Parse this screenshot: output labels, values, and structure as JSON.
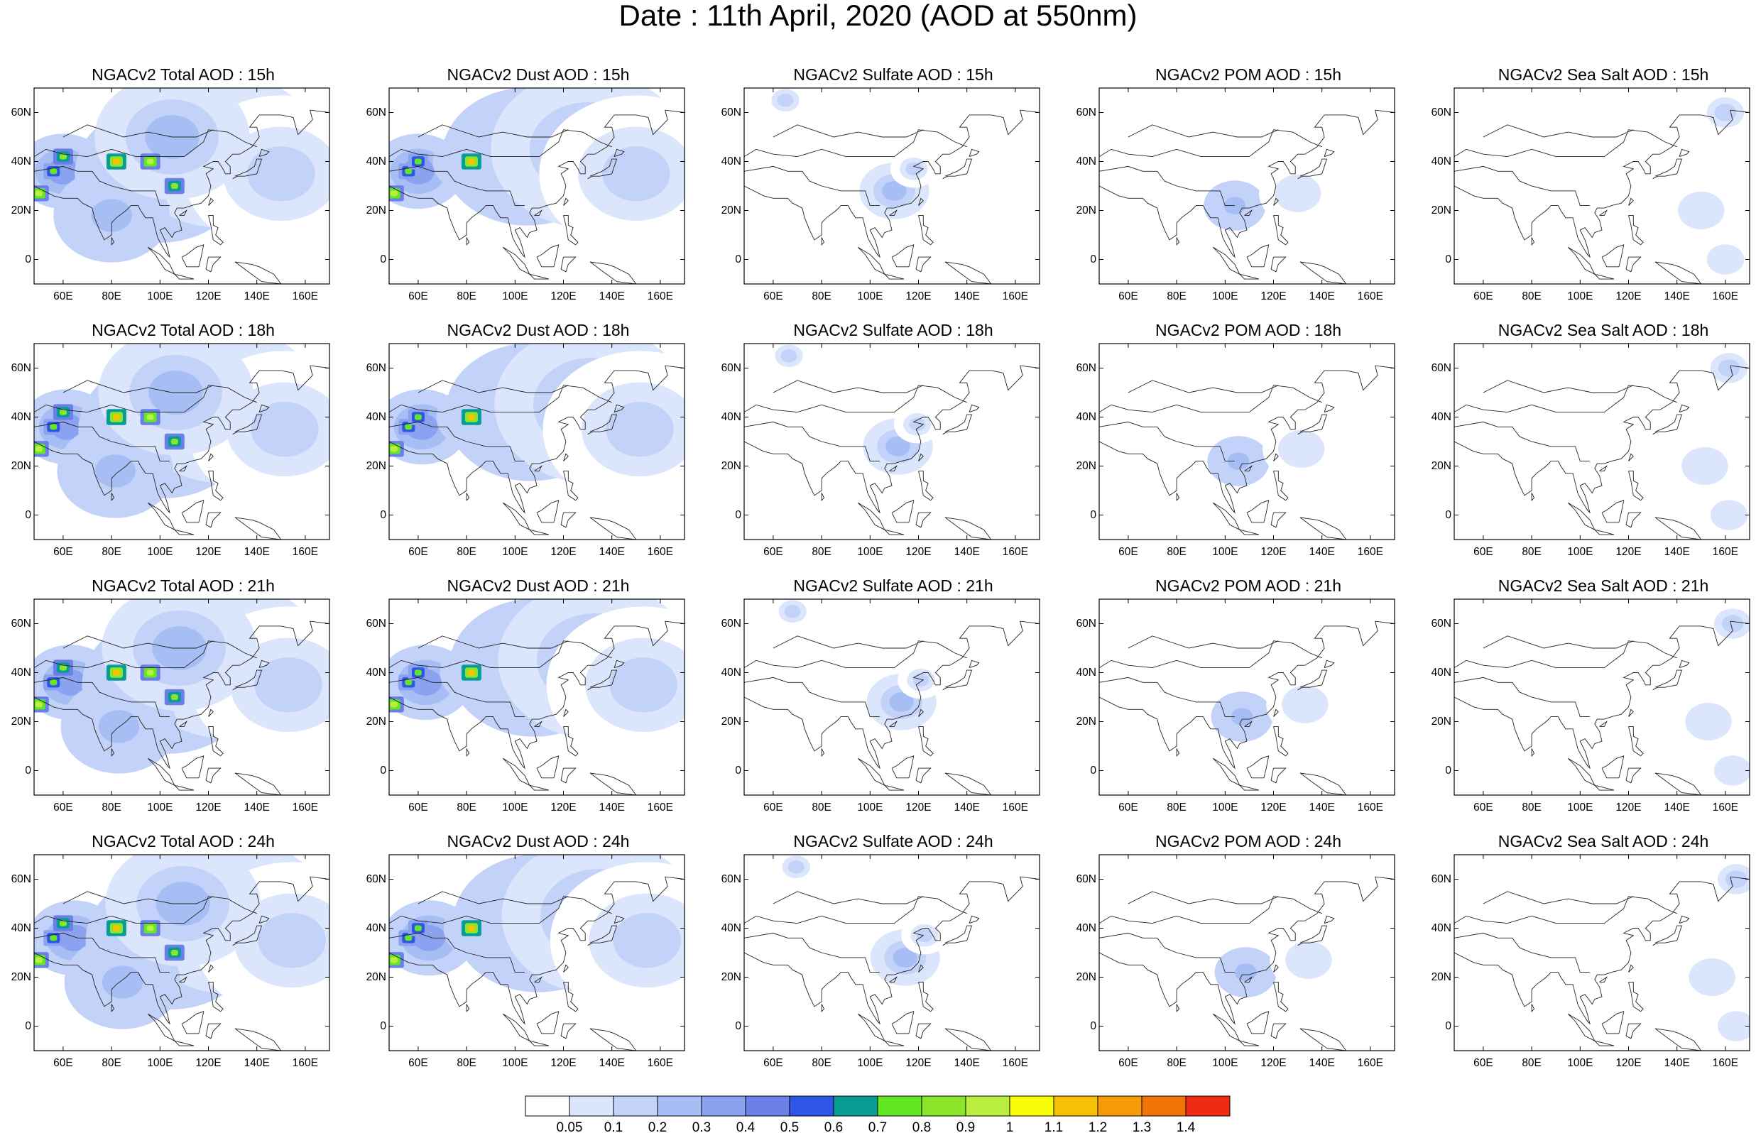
{
  "title": "Date : 11th April, 2020 (AOD at 550nm)",
  "chart_data": {
    "type": "heatmap",
    "title": "Date : 11th April, 2020 (AOD at 550nm)",
    "description_grid": "4 rows (forecast hours) x 5 columns (aerosol species) of gridded map panels over Asia",
    "map_extent": {
      "lon": [
        48,
        170
      ],
      "lat": [
        -10,
        70
      ]
    },
    "x_ticks": [
      "60E",
      "80E",
      "100E",
      "120E",
      "140E",
      "160E"
    ],
    "x_tick_values": [
      60,
      80,
      100,
      120,
      140,
      160
    ],
    "y_ticks": [
      "60N",
      "40N",
      "20N",
      "0"
    ],
    "y_tick_values": [
      60,
      40,
      20,
      0
    ],
    "colorbar": {
      "levels": [
        "0.05",
        "0.1",
        "0.2",
        "0.3",
        "0.4",
        "0.5",
        "0.6",
        "0.7",
        "0.8",
        "0.9",
        "1",
        "1.1",
        "1.2",
        "1.3",
        "1.4"
      ],
      "colors": [
        "#ffffff",
        "#dbe5fb",
        "#c3d2f8",
        "#a7bef5",
        "#8ba2f0",
        "#6a7fe8",
        "#2f55e6",
        "#079c95",
        "#63e623",
        "#8be62b",
        "#b9ee41",
        "#fafd08",
        "#f7c105",
        "#f49b07",
        "#f27308",
        "#ef2b14"
      ]
    },
    "panels": [
      {
        "title": "NGACv2 Total AOD : 15h",
        "species": "total",
        "hour": "15h"
      },
      {
        "title": "NGACv2 Dust AOD : 15h",
        "species": "dust",
        "hour": "15h"
      },
      {
        "title": "NGACv2 Sulfate AOD : 15h",
        "species": "sulfate",
        "hour": "15h"
      },
      {
        "title": "NGACv2 POM AOD : 15h",
        "species": "pom",
        "hour": "15h"
      },
      {
        "title": "NGACv2 Sea Salt AOD : 15h",
        "species": "seasalt",
        "hour": "15h"
      },
      {
        "title": "NGACv2 Total AOD : 18h",
        "species": "total",
        "hour": "18h"
      },
      {
        "title": "NGACv2 Dust AOD : 18h",
        "species": "dust",
        "hour": "18h"
      },
      {
        "title": "NGACv2 Sulfate AOD : 18h",
        "species": "sulfate",
        "hour": "18h"
      },
      {
        "title": "NGACv2 POM AOD : 18h",
        "species": "pom",
        "hour": "18h"
      },
      {
        "title": "NGACv2 Sea Salt AOD : 18h",
        "species": "seasalt",
        "hour": "18h"
      },
      {
        "title": "NGACv2 Total AOD : 21h",
        "species": "total",
        "hour": "21h"
      },
      {
        "title": "NGACv2 Dust AOD : 21h",
        "species": "dust",
        "hour": "21h"
      },
      {
        "title": "NGACv2 Sulfate AOD : 21h",
        "species": "sulfate",
        "hour": "21h"
      },
      {
        "title": "NGACv2 POM AOD : 21h",
        "species": "pom",
        "hour": "21h"
      },
      {
        "title": "NGACv2 Sea Salt AOD : 21h",
        "species": "seasalt",
        "hour": "21h"
      },
      {
        "title": "NGACv2 Total AOD : 24h",
        "species": "total",
        "hour": "24h"
      },
      {
        "title": "NGACv2 Dust AOD : 24h",
        "species": "dust",
        "hour": "24h"
      },
      {
        "title": "NGACv2 Sulfate AOD : 24h",
        "species": "sulfate",
        "hour": "24h"
      },
      {
        "title": "NGACv2 POM AOD : 24h",
        "species": "pom",
        "hour": "24h"
      },
      {
        "title": "NGACv2 Sea Salt  AOD : 24h",
        "species": "seasalt",
        "hour": "24h"
      }
    ],
    "plumes": {
      "total": [
        {
          "lon": 60,
          "lat": 36,
          "r": 12,
          "aod": 0.35
        },
        {
          "lon": 82,
          "lat": 40,
          "r": 10,
          "aod": 0.45
        },
        {
          "lon": 100,
          "lat": 35,
          "r": 22,
          "aod": 0.3
        },
        {
          "lon": 125,
          "lat": 45,
          "r": 25,
          "aod": 0.2
        },
        {
          "lon": 150,
          "lat": 35,
          "r": 25,
          "aod": 0.12
        },
        {
          "lon": 80,
          "lat": 18,
          "r": 15,
          "aod": 0.25
        },
        {
          "lon": 105,
          "lat": 50,
          "r": 20,
          "aod": 0.2
        }
      ],
      "total_hotspots": [
        {
          "lon": 82,
          "lat": 40,
          "aod": 1.1
        },
        {
          "lon": 50,
          "lat": 27,
          "aod": 0.9
        },
        {
          "lon": 56,
          "lat": 36,
          "aod": 0.7
        },
        {
          "lon": 96,
          "lat": 40,
          "aod": 0.9
        },
        {
          "lon": 60,
          "lat": 42,
          "aod": 0.8
        },
        {
          "lon": 106,
          "lat": 30,
          "aod": 0.8
        }
      ],
      "dust": [
        {
          "lon": 60,
          "lat": 36,
          "r": 12,
          "aod": 0.35
        },
        {
          "lon": 82,
          "lat": 40,
          "r": 10,
          "aod": 0.45
        },
        {
          "lon": 105,
          "lat": 42,
          "r": 22,
          "aod": 0.25
        },
        {
          "lon": 130,
          "lat": 45,
          "r": 25,
          "aod": 0.15
        },
        {
          "lon": 150,
          "lat": 35,
          "r": 25,
          "aod": 0.1
        }
      ],
      "dust_hotspots": [
        {
          "lon": 82,
          "lat": 40,
          "aod": 1.1
        },
        {
          "lon": 50,
          "lat": 27,
          "aod": 0.9
        },
        {
          "lon": 56,
          "lat": 36,
          "aod": 0.7
        },
        {
          "lon": 60,
          "lat": 40,
          "aod": 0.7
        }
      ],
      "sulfate": [
        {
          "lon": 110,
          "lat": 28,
          "r": 9,
          "aod": 0.2
        },
        {
          "lon": 118,
          "lat": 37,
          "r": 6,
          "aod": 0.12
        },
        {
          "lon": 65,
          "lat": 65,
          "r": 6,
          "aod": 0.1
        }
      ],
      "pom": [
        {
          "lon": 104,
          "lat": 22,
          "r": 8,
          "aod": 0.25
        },
        {
          "lon": 130,
          "lat": 27,
          "r": 10,
          "aod": 0.08
        }
      ],
      "seasalt": [
        {
          "lon": 160,
          "lat": 60,
          "r": 8,
          "aod": 0.12
        },
        {
          "lon": 150,
          "lat": 20,
          "r": 10,
          "aod": 0.08
        },
        {
          "lon": 160,
          "lat": 0,
          "r": 8,
          "aod": 0.08
        }
      ]
    }
  }
}
